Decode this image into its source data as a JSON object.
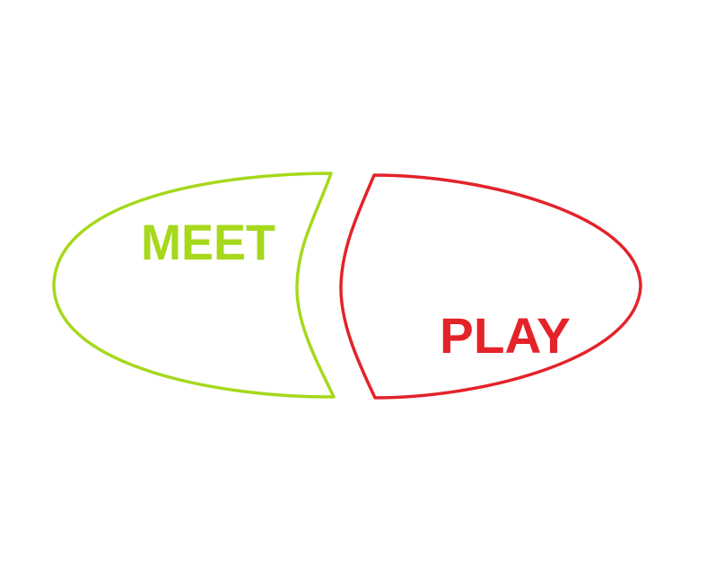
{
  "logo": {
    "left_word": "MEET",
    "right_word": "PLAY",
    "left_color": "#a6d81c",
    "right_color": "#e3232a",
    "background": "#ffffff"
  }
}
